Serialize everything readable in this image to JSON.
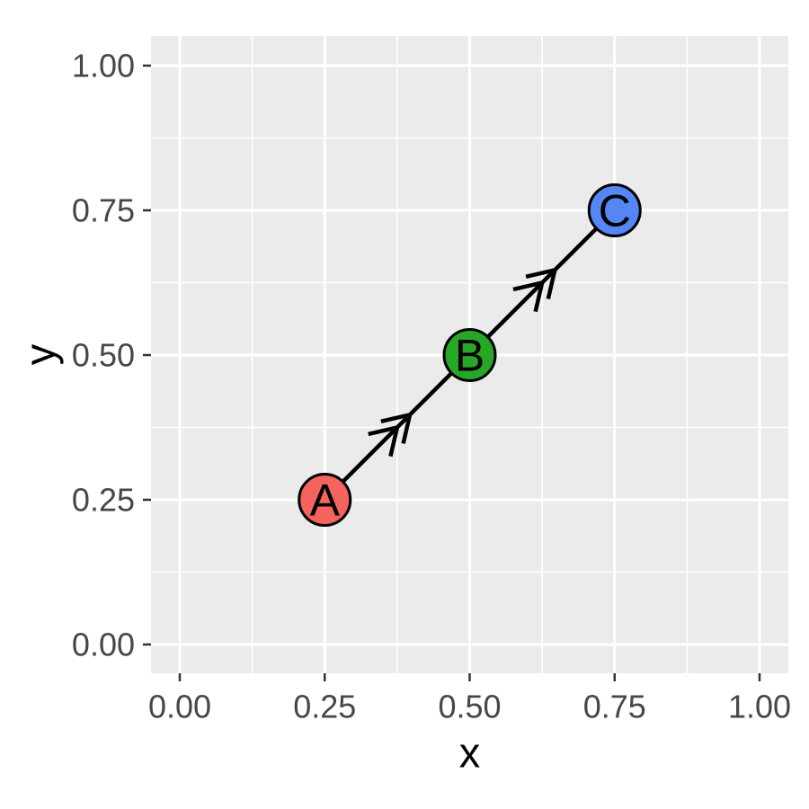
{
  "figure": {
    "background": "#FFFFFF",
    "panel_background": "#EBEBEB",
    "grid_color": "#FFFFFF",
    "axis_text_color": "#474747",
    "axis_title_color": "#000000",
    "tick_color": "#333333",
    "path_color": "#000000",
    "point_outline_color": "#000000",
    "point_label_color": "#000000"
  },
  "chart_data": {
    "type": "scatter",
    "title": "",
    "xlabel": "x",
    "ylabel": "y",
    "xlim": [
      -0.05,
      1.05
    ],
    "ylim": [
      -0.05,
      1.05
    ],
    "grid": true,
    "legend": false,
    "x_ticks": {
      "values": [
        0,
        0.25,
        0.5,
        0.75,
        1
      ],
      "labels": [
        "0.00",
        "0.25",
        "0.50",
        "0.75",
        "1.00"
      ]
    },
    "y_ticks": {
      "values": [
        0,
        0.25,
        0.5,
        0.75,
        1
      ],
      "labels": [
        "0.00",
        "0.25",
        "0.50",
        "0.75",
        "1.00"
      ]
    },
    "minor_grid_x": [
      0.125,
      0.375,
      0.625,
      0.875
    ],
    "minor_grid_y": [
      0.125,
      0.375,
      0.625,
      0.875
    ],
    "points": [
      {
        "label": "A",
        "x": 0.25,
        "y": 0.25,
        "fill": "#F4635D"
      },
      {
        "label": "B",
        "x": 0.5,
        "y": 0.5,
        "fill": "#26A826"
      },
      {
        "label": "C",
        "x": 0.75,
        "y": 0.75,
        "fill": "#5586F5"
      }
    ],
    "path": {
      "order": [
        "A",
        "B",
        "C"
      ],
      "arrow_style": "double-open-chevron-at-segment-midpoint"
    }
  }
}
